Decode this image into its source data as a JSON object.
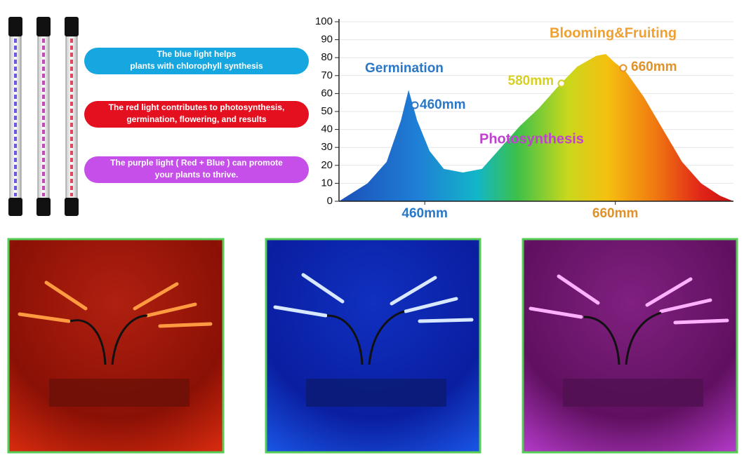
{
  "features": [
    {
      "lines": [
        "The blue light helps",
        "plants with chlorophyll synthesis"
      ]
    },
    {
      "lines": [
        "The red light contributes to photosynthesis,",
        "germination, flowering, and results"
      ]
    },
    {
      "lines": [
        "The purple light ( Red + Blue ) can promote",
        "your plants to thrive."
      ]
    }
  ],
  "chart_data": {
    "type": "area",
    "x": [
      370,
      400,
      420,
      435,
      443,
      452,
      465,
      480,
      500,
      520,
      540,
      560,
      580,
      600,
      620,
      640,
      650,
      660,
      670,
      690,
      710,
      730,
      750,
      770,
      784
    ],
    "values": [
      0,
      10,
      22,
      45,
      62,
      45,
      28,
      18,
      16,
      18,
      30,
      42,
      52,
      64,
      75,
      81,
      82,
      77,
      73,
      58,
      40,
      22,
      10,
      3,
      0
    ],
    "xlim": [
      370,
      784
    ],
    "xticks": [
      {
        "value": 460,
        "label": "460mm"
      },
      {
        "value": 660,
        "label": "660mm"
      }
    ],
    "ylim": [
      0,
      100
    ],
    "yticks": [
      0,
      10,
      20,
      30,
      40,
      50,
      60,
      70,
      80,
      90,
      100
    ],
    "grid": true,
    "annotations": [
      {
        "text": "Germination"
      },
      {
        "text": "460mm"
      },
      {
        "text": "Blooming&Fruiting"
      },
      {
        "text": "580mm"
      },
      {
        "text": "660mm"
      },
      {
        "text": "Photosynthesis"
      }
    ]
  }
}
